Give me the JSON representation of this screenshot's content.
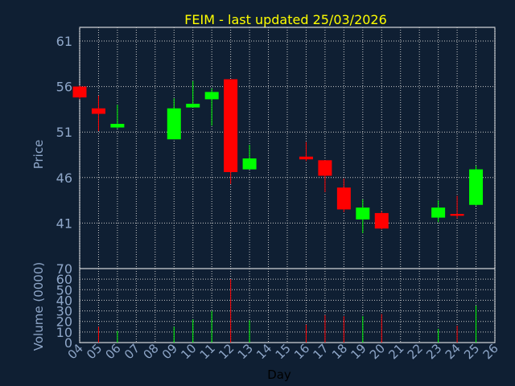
{
  "chart_data": {
    "type": "candlestick",
    "title": "FEIM - last updated 25/03/2026",
    "colors": {
      "background": "#0f1f33",
      "panel": "#0f1f33",
      "grid": "#c8c8c8",
      "up": "#00ff00",
      "down": "#ff0000",
      "title": "#ffff00",
      "tick": "#8ea6c8",
      "xlabel": "#000000"
    },
    "price_panel": {
      "ylabel": "Price",
      "yticks": [
        41,
        46,
        51,
        56,
        61
      ],
      "ylim": [
        36,
        62.5
      ]
    },
    "volume_panel": {
      "ylabel": "Volume (0000)",
      "yticks": [
        0,
        10,
        20,
        30,
        40,
        50,
        60,
        70
      ],
      "ylim": [
        0,
        70
      ]
    },
    "xlabel": "Day",
    "x_ticks": [
      "04",
      "05",
      "06",
      "07",
      "08",
      "09",
      "10",
      "11",
      "12",
      "13",
      "14",
      "15",
      "16",
      "17",
      "18",
      "19",
      "20",
      "21",
      "22",
      "23",
      "24",
      "25",
      "26"
    ],
    "candles": [
      {
        "day": "04",
        "open": 56.0,
        "high": 56.1,
        "low": 54.6,
        "close": 54.8,
        "volume": 0
      },
      {
        "day": "05",
        "open": 53.6,
        "high": 55.0,
        "low": 51.1,
        "close": 53.0,
        "volume": 15
      },
      {
        "day": "06",
        "open": 51.5,
        "high": 54.0,
        "low": 51.4,
        "close": 51.9,
        "volume": 11
      },
      {
        "day": "09",
        "open": 50.2,
        "high": 54.7,
        "low": 50.2,
        "close": 53.6,
        "volume": 15
      },
      {
        "day": "10",
        "open": 53.7,
        "high": 56.6,
        "low": 53.7,
        "close": 54.1,
        "volume": 22
      },
      {
        "day": "11",
        "open": 54.6,
        "high": 55.8,
        "low": 51.7,
        "close": 55.4,
        "volume": 30
      },
      {
        "day": "12",
        "open": 56.8,
        "high": 56.8,
        "low": 45.3,
        "close": 46.6,
        "volume": 60
      },
      {
        "day": "13",
        "open": 46.9,
        "high": 49.6,
        "low": 46.9,
        "close": 48.1,
        "volume": 21
      },
      {
        "day": "16",
        "open": 48.3,
        "high": 49.9,
        "low": 47.8,
        "close": 48.0,
        "volume": 17
      },
      {
        "day": "17",
        "open": 47.9,
        "high": 47.9,
        "low": 44.4,
        "close": 46.2,
        "volume": 26
      },
      {
        "day": "18",
        "open": 44.9,
        "high": 45.9,
        "low": 42.2,
        "close": 42.5,
        "volume": 25
      },
      {
        "day": "19",
        "open": 41.4,
        "high": 43.6,
        "low": 39.9,
        "close": 42.7,
        "volume": 25
      },
      {
        "day": "20",
        "open": 42.1,
        "high": 42.3,
        "low": 40.3,
        "close": 40.4,
        "volume": 27
      },
      {
        "day": "23",
        "open": 41.6,
        "high": 43.5,
        "low": 41.1,
        "close": 42.7,
        "volume": 13
      },
      {
        "day": "24",
        "open": 42.0,
        "high": 44.0,
        "low": 41.5,
        "close": 41.8,
        "volume": 16
      },
      {
        "day": "25",
        "open": 43.0,
        "high": 47.3,
        "low": 42.9,
        "close": 46.9,
        "volume": 35
      }
    ]
  }
}
